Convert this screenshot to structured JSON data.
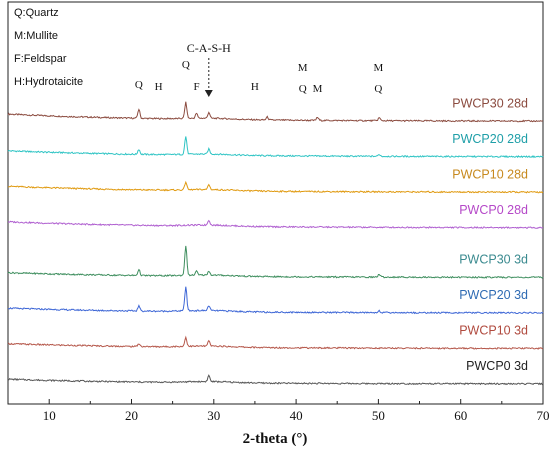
{
  "chart_data": {
    "type": "line",
    "xlabel": "2-theta (°)",
    "ylabel": "",
    "xlim": [
      5,
      70
    ],
    "xticks": [
      10,
      20,
      30,
      40,
      50,
      60,
      70
    ],
    "grid": false,
    "y_axis_visible": false,
    "phase_legend": [
      "Q:Quartz",
      "M:Mullite",
      "F:Feldspar",
      "H:Hydrotaicite"
    ],
    "peak_annotations": [
      {
        "label": "Q",
        "x": 20.9,
        "row": "low"
      },
      {
        "label": "H",
        "x": 23.3,
        "row": "lower"
      },
      {
        "label": "Q",
        "x": 26.6,
        "row": "top"
      },
      {
        "label": "F",
        "x": 27.9,
        "row": "lower"
      },
      {
        "label": "H",
        "x": 35.0,
        "row": "lower"
      },
      {
        "label": "M",
        "x": 40.8,
        "row": "mid"
      },
      {
        "label": "Q",
        "x": 40.8,
        "row": "lowest"
      },
      {
        "label": "M",
        "x": 42.6,
        "row": "lowest"
      },
      {
        "label": "M",
        "x": 50.0,
        "row": "mid"
      },
      {
        "label": "Q",
        "x": 50.0,
        "row": "lowest"
      }
    ],
    "csh_marker": {
      "label": "C-A-S-H",
      "x": 29.4
    },
    "series": [
      {
        "name": "PWCP30 28d",
        "color": "#8B4B3F",
        "label_color": "#8B4B3F",
        "offset": 8,
        "drift": 0.6,
        "peaks": [
          [
            20.9,
            0.9
          ],
          [
            26.6,
            1.6
          ],
          [
            27.9,
            0.5
          ],
          [
            29.4,
            0.6
          ],
          [
            36.5,
            0.3
          ],
          [
            42.6,
            0.3
          ],
          [
            50.1,
            0.3
          ]
        ]
      },
      {
        "name": "PWCP20 28d",
        "color": "#2EC4C4",
        "label_color": "#1F9FA8",
        "offset": 7,
        "drift": 0.5,
        "peaks": [
          [
            20.9,
            0.5
          ],
          [
            26.6,
            1.8
          ],
          [
            29.4,
            0.5
          ],
          [
            50.1,
            0.2
          ]
        ]
      },
      {
        "name": "PWCP10 28d",
        "color": "#E09A10",
        "label_color": "#C7891E",
        "offset": 6,
        "drift": 0.5,
        "peaks": [
          [
            26.6,
            0.8
          ],
          [
            29.4,
            0.5
          ]
        ]
      },
      {
        "name": "PWCP0  28d",
        "color": "#B060D0",
        "label_color": "#B548C8",
        "offset": 5,
        "drift": 0.5,
        "peaks": [
          [
            29.4,
            0.5
          ]
        ]
      },
      {
        "name": "PWCP30 3d",
        "color": "#3E8E5E",
        "label_color": "#3A8A8F",
        "offset": 3.6,
        "drift": 0.4,
        "peaks": [
          [
            20.9,
            0.6
          ],
          [
            26.6,
            3.0
          ],
          [
            27.9,
            0.4
          ],
          [
            29.4,
            0.4
          ],
          [
            50.1,
            0.3
          ]
        ]
      },
      {
        "name": "PWCP20 3d",
        "color": "#3D66D6",
        "label_color": "#2F6BB3",
        "offset": 2.6,
        "drift": 0.4,
        "peaks": [
          [
            20.9,
            0.5
          ],
          [
            26.6,
            2.4
          ],
          [
            29.4,
            0.5
          ],
          [
            50.1,
            0.2
          ]
        ]
      },
      {
        "name": "PWCP10 3d",
        "color": "#B5574A",
        "label_color": "#B04A3E",
        "offset": 1.6,
        "drift": 0.4,
        "peaks": [
          [
            20.9,
            0.3
          ],
          [
            26.6,
            0.9
          ],
          [
            29.4,
            0.5
          ]
        ]
      },
      {
        "name": "PWCP0  3d",
        "color": "#555555",
        "label_color": "#222222",
        "offset": 0.6,
        "drift": 0.4,
        "peaks": [
          [
            29.4,
            0.6
          ]
        ]
      }
    ]
  }
}
